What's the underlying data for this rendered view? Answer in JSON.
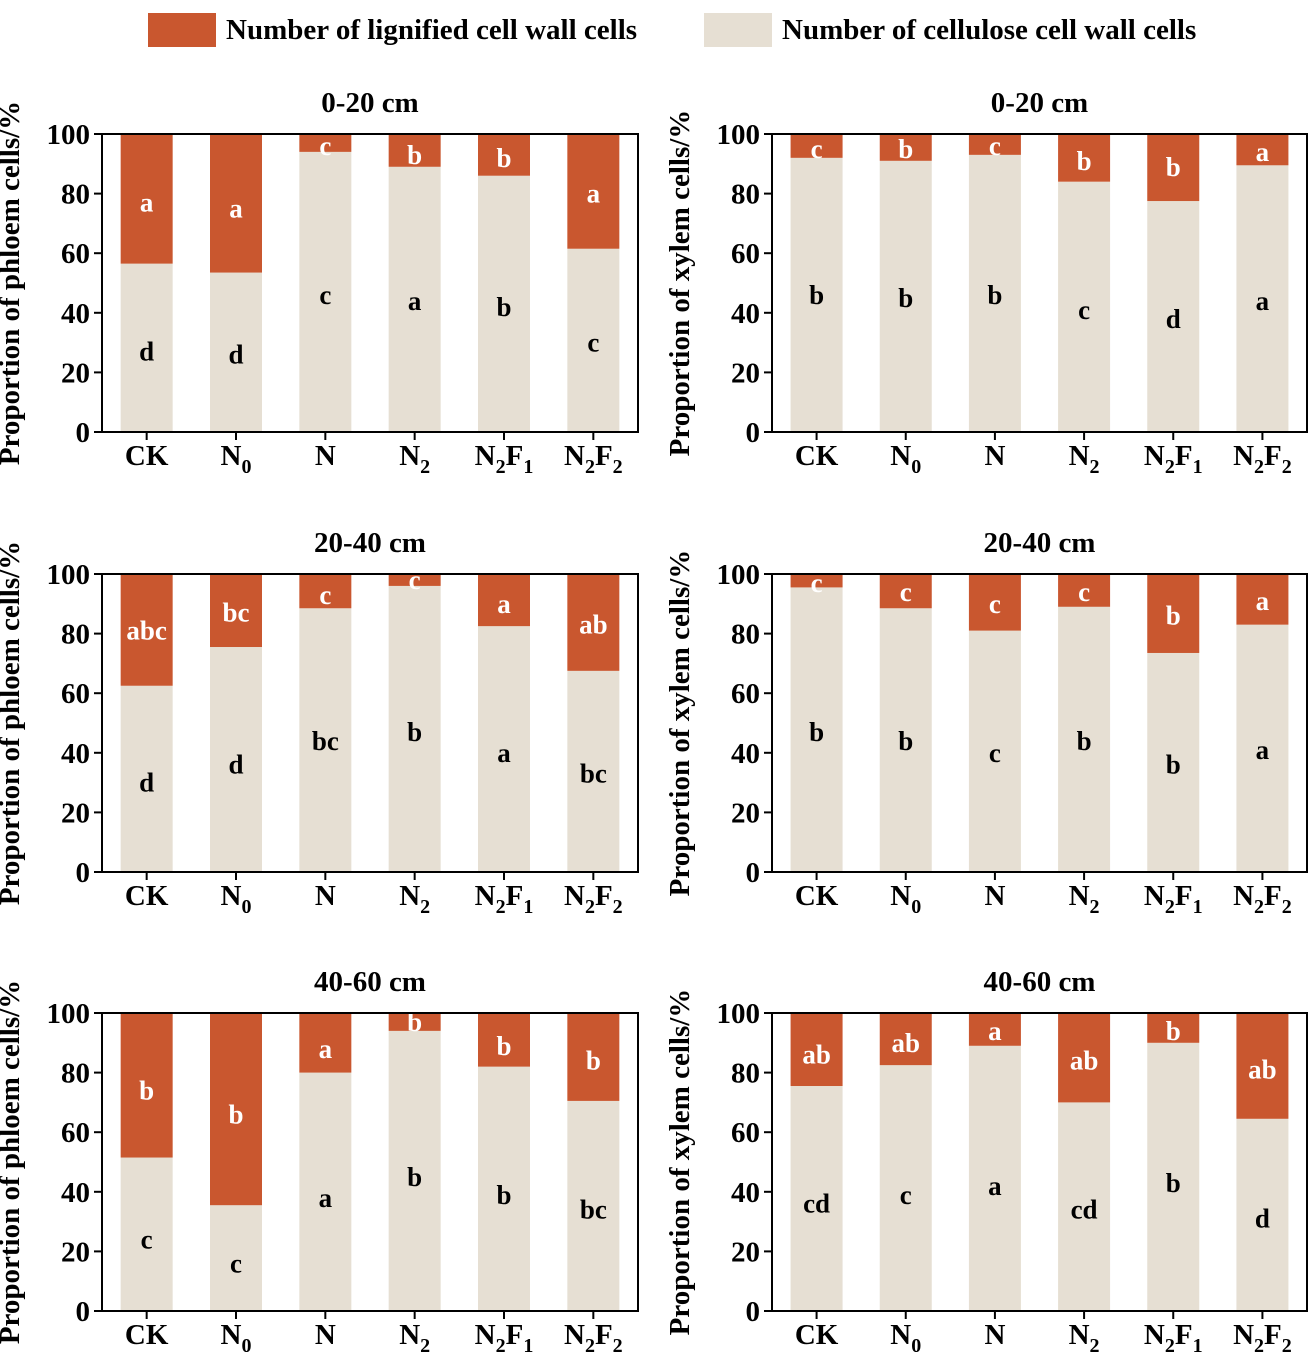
{
  "legend": {
    "lignified_label": "Number of lignified cell wall cells",
    "cellulose_label": "Number of cellulose cell wall cells"
  },
  "colors": {
    "lignified": "#C9572F",
    "cellulose": "#E6DFD3",
    "axis": "#000000"
  },
  "chart_data": [
    {
      "type": "bar",
      "stacked": true,
      "title": "0-20 cm",
      "ylabel": "Proportion of phloem cells/%",
      "xlabel": "",
      "ylim": [
        0,
        100
      ],
      "yticks": [
        0,
        20,
        40,
        60,
        80,
        100
      ],
      "categories": [
        {
          "base": "CK",
          "sub1": "",
          "mid": "",
          "sub2": ""
        },
        {
          "base": "N",
          "sub1": "0",
          "mid": "",
          "sub2": ""
        },
        {
          "base": "N",
          "sub1": "",
          "mid": "",
          "sub2": ""
        },
        {
          "base": "N",
          "sub1": "2",
          "mid": "",
          "sub2": ""
        },
        {
          "base": "N",
          "sub1": "2",
          "mid": "F",
          "sub2": "1"
        },
        {
          "base": "N",
          "sub1": "2",
          "mid": "F",
          "sub2": "2"
        }
      ],
      "series": [
        {
          "name": "Number of cellulose cell wall cells",
          "values": [
            56.5,
            53.5,
            94,
            89,
            86,
            61.5
          ],
          "letters": [
            "d",
            "d",
            "c",
            "a",
            "b",
            "c"
          ],
          "label_y": [
            27,
            26,
            46,
            44,
            42,
            30
          ]
        },
        {
          "name": "Number of lignified cell wall cells",
          "values": [
            43.5,
            46.5,
            6,
            11,
            14,
            38.5
          ],
          "letters": [
            "a",
            "a",
            "c",
            "b",
            "b",
            "a"
          ],
          "label_y": [
            77,
            75,
            96,
            93,
            92,
            80
          ]
        }
      ]
    },
    {
      "type": "bar",
      "stacked": true,
      "title": "0-20 cm",
      "ylabel": "Proportion of xylem cells/%",
      "xlabel": "",
      "ylim": [
        0,
        100
      ],
      "yticks": [
        0,
        20,
        40,
        60,
        80,
        100
      ],
      "categories": [
        {
          "base": "CK",
          "sub1": "",
          "mid": "",
          "sub2": ""
        },
        {
          "base": "N",
          "sub1": "0",
          "mid": "",
          "sub2": ""
        },
        {
          "base": "N",
          "sub1": "",
          "mid": "",
          "sub2": ""
        },
        {
          "base": "N",
          "sub1": "2",
          "mid": "",
          "sub2": ""
        },
        {
          "base": "N",
          "sub1": "2",
          "mid": "F",
          "sub2": "1"
        },
        {
          "base": "N",
          "sub1": "2",
          "mid": "F",
          "sub2": "2"
        }
      ],
      "series": [
        {
          "name": "Number of cellulose cell wall cells",
          "values": [
            92,
            91,
            93,
            84,
            77.5,
            89.5
          ],
          "letters": [
            "b",
            "b",
            "b",
            "c",
            "d",
            "a"
          ],
          "label_y": [
            46,
            45,
            46,
            41,
            38,
            44
          ]
        },
        {
          "name": "Number of lignified cell wall cells",
          "values": [
            8,
            9,
            7,
            16,
            22.5,
            10.5
          ],
          "letters": [
            "c",
            "b",
            "c",
            "b",
            "b",
            "a"
          ],
          "label_y": [
            95,
            95,
            96,
            91,
            89,
            94
          ]
        }
      ]
    },
    {
      "type": "bar",
      "stacked": true,
      "title": "20-40 cm",
      "ylabel": "Proportion of phloem cells/%",
      "xlabel": "",
      "ylim": [
        0,
        100
      ],
      "yticks": [
        0,
        20,
        40,
        60,
        80,
        100
      ],
      "categories": [
        {
          "base": "CK",
          "sub1": "",
          "mid": "",
          "sub2": ""
        },
        {
          "base": "N",
          "sub1": "0",
          "mid": "",
          "sub2": ""
        },
        {
          "base": "N",
          "sub1": "",
          "mid": "",
          "sub2": ""
        },
        {
          "base": "N",
          "sub1": "2",
          "mid": "",
          "sub2": ""
        },
        {
          "base": "N",
          "sub1": "2",
          "mid": "F",
          "sub2": "1"
        },
        {
          "base": "N",
          "sub1": "2",
          "mid": "F",
          "sub2": "2"
        }
      ],
      "series": [
        {
          "name": "Number of cellulose cell wall cells",
          "values": [
            62.5,
            75.5,
            88.5,
            96,
            82.5,
            67.5
          ],
          "letters": [
            "d",
            "d",
            "bc",
            "b",
            "a",
            "bc"
          ],
          "label_y": [
            30,
            36,
            44,
            47,
            40,
            33
          ]
        },
        {
          "name": "Number of lignified cell wall cells",
          "values": [
            37.5,
            24.5,
            11.5,
            4,
            17.5,
            32.5
          ],
          "letters": [
            "abc",
            "bc",
            "c",
            "c",
            "a",
            "ab"
          ],
          "label_y": [
            81,
            87,
            93,
            98,
            90,
            83
          ]
        }
      ]
    },
    {
      "type": "bar",
      "stacked": true,
      "title": "20-40 cm",
      "ylabel": "Proportion of xylem cells/%",
      "xlabel": "",
      "ylim": [
        0,
        100
      ],
      "yticks": [
        0,
        20,
        40,
        60,
        80,
        100
      ],
      "categories": [
        {
          "base": "CK",
          "sub1": "",
          "mid": "",
          "sub2": ""
        },
        {
          "base": "N",
          "sub1": "0",
          "mid": "",
          "sub2": ""
        },
        {
          "base": "N",
          "sub1": "",
          "mid": "",
          "sub2": ""
        },
        {
          "base": "N",
          "sub1": "2",
          "mid": "",
          "sub2": ""
        },
        {
          "base": "N",
          "sub1": "2",
          "mid": "F",
          "sub2": "1"
        },
        {
          "base": "N",
          "sub1": "2",
          "mid": "F",
          "sub2": "2"
        }
      ],
      "series": [
        {
          "name": "Number of cellulose cell wall cells",
          "values": [
            95.5,
            88.5,
            81,
            89,
            73.5,
            83
          ],
          "letters": [
            "b",
            "b",
            "c",
            "b",
            "b",
            "a"
          ],
          "label_y": [
            47,
            44,
            40,
            44,
            36,
            41
          ]
        },
        {
          "name": "Number of lignified cell wall cells",
          "values": [
            4.5,
            11.5,
            19,
            11,
            26.5,
            17
          ],
          "letters": [
            "c",
            "c",
            "c",
            "c",
            "b",
            "a"
          ],
          "label_y": [
            97,
            94,
            90,
            94,
            86,
            91
          ]
        }
      ]
    },
    {
      "type": "bar",
      "stacked": true,
      "title": "40-60 cm",
      "ylabel": "Proportion of phloem cells/%",
      "xlabel": "",
      "ylim": [
        0,
        100
      ],
      "yticks": [
        0,
        20,
        40,
        60,
        80,
        100
      ],
      "categories": [
        {
          "base": "CK",
          "sub1": "",
          "mid": "",
          "sub2": ""
        },
        {
          "base": "N",
          "sub1": "0",
          "mid": "",
          "sub2": ""
        },
        {
          "base": "N",
          "sub1": "",
          "mid": "",
          "sub2": ""
        },
        {
          "base": "N",
          "sub1": "2",
          "mid": "",
          "sub2": ""
        },
        {
          "base": "N",
          "sub1": "2",
          "mid": "F",
          "sub2": "1"
        },
        {
          "base": "N",
          "sub1": "2",
          "mid": "F",
          "sub2": "2"
        }
      ],
      "series": [
        {
          "name": "Number of cellulose cell wall cells",
          "values": [
            51.5,
            35.5,
            80,
            94,
            82,
            70.5
          ],
          "letters": [
            "c",
            "c",
            "a",
            "b",
            "b",
            "bc"
          ],
          "label_y": [
            24,
            16,
            38,
            45,
            39,
            34
          ]
        },
        {
          "name": "Number of lignified cell wall cells",
          "values": [
            48.5,
            64.5,
            20,
            6,
            18,
            29.5
          ],
          "letters": [
            "b",
            "b",
            "a",
            "b",
            "b",
            "b"
          ],
          "label_y": [
            74,
            66,
            88,
            97,
            89,
            84
          ]
        }
      ]
    },
    {
      "type": "bar",
      "stacked": true,
      "title": "40-60 cm",
      "ylabel": "Proportion of xylem cells/%",
      "xlabel": "",
      "ylim": [
        0,
        100
      ],
      "yticks": [
        0,
        20,
        40,
        60,
        80,
        100
      ],
      "categories": [
        {
          "base": "CK",
          "sub1": "",
          "mid": "",
          "sub2": ""
        },
        {
          "base": "N",
          "sub1": "0",
          "mid": "",
          "sub2": ""
        },
        {
          "base": "N",
          "sub1": "",
          "mid": "",
          "sub2": ""
        },
        {
          "base": "N",
          "sub1": "2",
          "mid": "",
          "sub2": ""
        },
        {
          "base": "N",
          "sub1": "2",
          "mid": "F",
          "sub2": "1"
        },
        {
          "base": "N",
          "sub1": "2",
          "mid": "F",
          "sub2": "2"
        }
      ],
      "series": [
        {
          "name": "Number of cellulose cell wall cells",
          "values": [
            75.5,
            82.5,
            89,
            70,
            90,
            64.5
          ],
          "letters": [
            "cd",
            "c",
            "a",
            "cd",
            "b",
            "d"
          ],
          "label_y": [
            36,
            39,
            42,
            34,
            43,
            31
          ]
        },
        {
          "name": "Number of lignified cell wall cells",
          "values": [
            24.5,
            17.5,
            11,
            30,
            10,
            35.5
          ],
          "letters": [
            "ab",
            "ab",
            "a",
            "ab",
            "b",
            "ab"
          ],
          "label_y": [
            86,
            90,
            94,
            84,
            94,
            81
          ]
        }
      ]
    }
  ]
}
